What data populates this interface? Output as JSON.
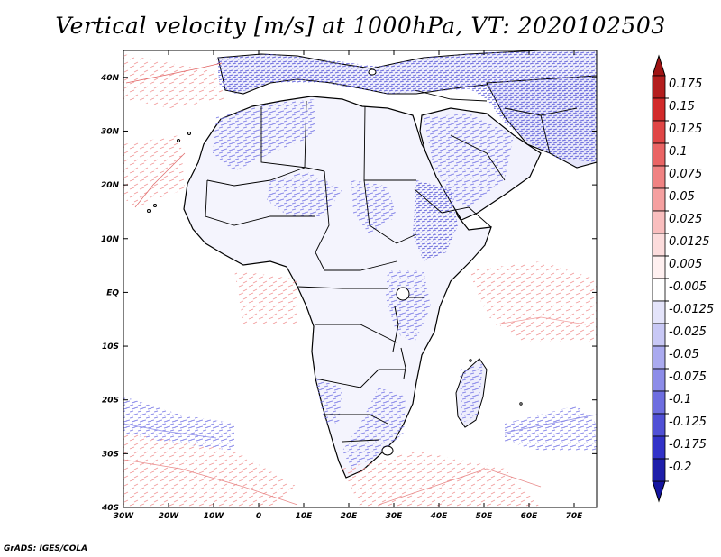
{
  "title": "Vertical velocity [m/s] at 1000hPa, VT: 2020102503",
  "credit": "GrADS: IGES/COLA",
  "map": {
    "lon_range": [
      -30,
      75
    ],
    "lat_range": [
      -40,
      45
    ],
    "lon_ticks": [
      {
        "value": -30,
        "label": "30W"
      },
      {
        "value": -20,
        "label": "20W"
      },
      {
        "value": -10,
        "label": "10W"
      },
      {
        "value": 0,
        "label": "0"
      },
      {
        "value": 10,
        "label": "10E"
      },
      {
        "value": 20,
        "label": "20E"
      },
      {
        "value": 30,
        "label": "30E"
      },
      {
        "value": 40,
        "label": "40E"
      },
      {
        "value": 50,
        "label": "50E"
      },
      {
        "value": 60,
        "label": "60E"
      },
      {
        "value": 70,
        "label": "70E"
      }
    ],
    "lat_ticks": [
      {
        "value": 40,
        "label": "40N"
      },
      {
        "value": 30,
        "label": "30N"
      },
      {
        "value": 20,
        "label": "20N"
      },
      {
        "value": 10,
        "label": "10N"
      },
      {
        "value": 0,
        "label": "EQ"
      },
      {
        "value": -10,
        "label": "10S"
      },
      {
        "value": -20,
        "label": "20S"
      },
      {
        "value": -30,
        "label": "30S"
      },
      {
        "value": -40,
        "label": "40S"
      }
    ]
  },
  "colorbar": {
    "levels": [
      {
        "label": "0.175",
        "color": "#b41e1e"
      },
      {
        "label": "0.15",
        "color": "#d22a2a"
      },
      {
        "label": "0.125",
        "color": "#e04646"
      },
      {
        "label": "0.1",
        "color": "#ea6464"
      },
      {
        "label": "0.075",
        "color": "#f08282"
      },
      {
        "label": "0.05",
        "color": "#f5a0a0"
      },
      {
        "label": "0.025",
        "color": "#f9bebe"
      },
      {
        "label": "0.0125",
        "color": "#fcdcdc"
      },
      {
        "label": "0.005",
        "color": "#fff0f0"
      },
      {
        "label": "-0.005",
        "color": "#ffffff"
      },
      {
        "label": "-0.0125",
        "color": "#e4e4fa"
      },
      {
        "label": "-0.025",
        "color": "#c8c8f5"
      },
      {
        "label": "-0.05",
        "color": "#aaaaef"
      },
      {
        "label": "-0.075",
        "color": "#8c8ce8"
      },
      {
        "label": "-0.1",
        "color": "#6e6ee0"
      },
      {
        "label": "-0.125",
        "color": "#5050d6"
      },
      {
        "label": "-0.175",
        "color": "#3232c8"
      },
      {
        "label": "-0.2",
        "color": "#1e1eaa"
      }
    ],
    "top_arrow_color": "#a01414",
    "bottom_arrow_color": "#1414a0"
  }
}
